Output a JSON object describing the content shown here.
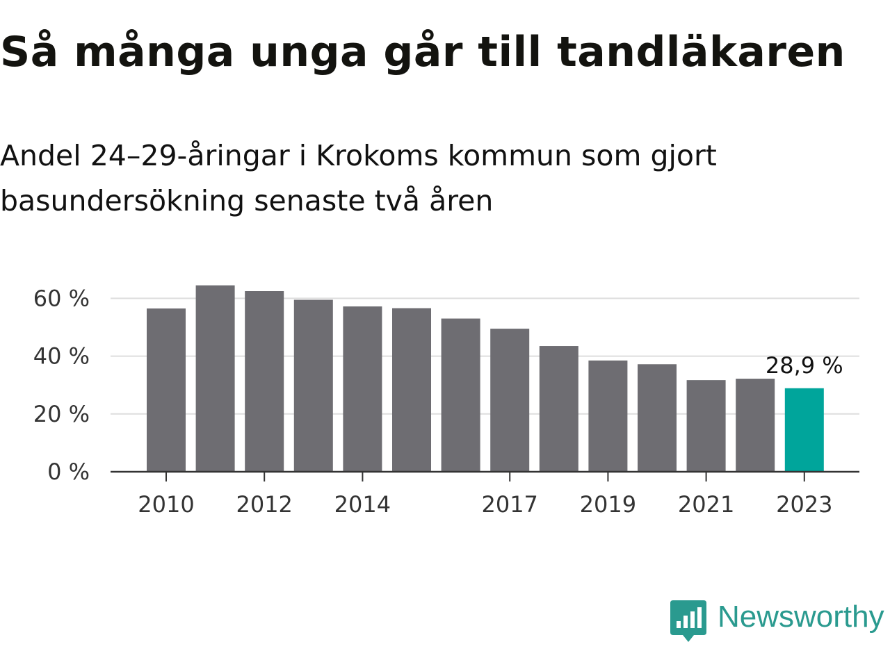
{
  "chart_data": {
    "type": "bar",
    "title": "Så många unga går till tandläkaren",
    "subtitle": "Andel 24–29-åringar i Krokoms kommun som gjort basundersökning senaste två åren",
    "categories": [
      "2010",
      "2011",
      "2012",
      "2013",
      "2014",
      "2015",
      "2016",
      "2017",
      "2018",
      "2019",
      "2020",
      "2021",
      "2022",
      "2023"
    ],
    "values": [
      56.5,
      64.5,
      62.5,
      59.5,
      57.2,
      56.6,
      53.0,
      49.5,
      43.5,
      38.5,
      37.2,
      31.7,
      32.2,
      28.9
    ],
    "x_tick_labels": [
      "2010",
      "2012",
      "2014",
      "2017",
      "2019",
      "2021",
      "2023"
    ],
    "y_ticks": [
      0,
      20,
      40,
      60
    ],
    "y_tick_labels": [
      "0 %",
      "20 %",
      "40 %",
      "60 %"
    ],
    "ylim": [
      0,
      70
    ],
    "xlabel": "",
    "ylabel": "",
    "grid": true,
    "highlight": {
      "category": "2023",
      "label": "28,9 %"
    },
    "colors": {
      "bar": "#6e6d72",
      "highlight": "#00a59b",
      "grid": "#dddddd",
      "axis": "#333333"
    }
  },
  "brand": {
    "name": "Newsworthy",
    "icon": "newsworthy-logo-icon",
    "color": "#2a9a8f"
  }
}
